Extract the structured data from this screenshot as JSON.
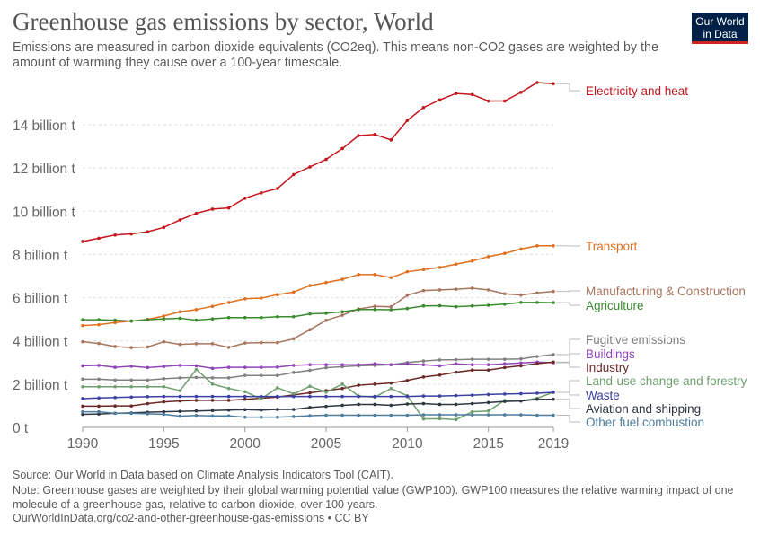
{
  "header": {
    "title": "Greenhouse gas emissions by sector, World",
    "subtitle": "Emissions are measured in carbon dioxide equivalents (CO2eq). This means non-CO2 gases are weighted by the amount of warming they cause over a 100-year timescale.",
    "logo": "Our World in Data"
  },
  "footer": {
    "source": "Source: Our World in Data based on Climate Analysis Indicators Tool (CAIT).",
    "note": "Note: Greenhouse gases are weighted by their global warming potential value (GWP100). GWP100 measures the relative warming impact of one molecule of a greenhouse gas, relative to carbon dioxide, over 100 years.",
    "url": "OurWorldInData.org/co2-and-other-greenhouse-gas-emissions • CC BY"
  },
  "chart_data": {
    "type": "line",
    "title": "Greenhouse gas emissions by sector, World",
    "xlabel": "",
    "ylabel": "",
    "xlim": [
      1990,
      2019
    ],
    "ylim": [
      0,
      16
    ],
    "x_ticks": [
      1990,
      1995,
      2000,
      2005,
      2010,
      2015,
      2019
    ],
    "y_ticks": [
      {
        "v": 0,
        "label": "0 t"
      },
      {
        "v": 2,
        "label": "2 billion t"
      },
      {
        "v": 4,
        "label": "4 billion t"
      },
      {
        "v": 6,
        "label": "6 billion t"
      },
      {
        "v": 8,
        "label": "8 billion t"
      },
      {
        "v": 10,
        "label": "10 billion t"
      },
      {
        "v": 12,
        "label": "12 billion t"
      },
      {
        "v": 14,
        "label": "14 billion t"
      }
    ],
    "grid": "horizontal dashed",
    "legend": "right, labels at line ends",
    "unit": "billion t",
    "x": [
      1990,
      1991,
      1992,
      1993,
      1994,
      1995,
      1996,
      1997,
      1998,
      1999,
      2000,
      2001,
      2002,
      2003,
      2004,
      2005,
      2006,
      2007,
      2008,
      2009,
      2010,
      2011,
      2012,
      2013,
      2014,
      2015,
      2016,
      2017,
      2018,
      2019
    ],
    "series": [
      {
        "name": "Electricity and heat",
        "color": "#c4161c",
        "values": [
          8.6,
          8.75,
          8.9,
          8.95,
          9.05,
          9.25,
          9.6,
          9.9,
          10.1,
          10.15,
          10.6,
          10.85,
          11.05,
          11.7,
          12.05,
          12.4,
          12.9,
          13.5,
          13.55,
          13.3,
          14.2,
          14.8,
          15.15,
          15.45,
          15.4,
          15.1,
          15.1,
          15.5,
          15.95,
          15.9
        ]
      },
      {
        "name": "Transport",
        "color": "#e0701e",
        "values": [
          4.71,
          4.75,
          4.85,
          4.92,
          5.0,
          5.15,
          5.35,
          5.45,
          5.6,
          5.78,
          5.95,
          5.98,
          6.14,
          6.26,
          6.56,
          6.7,
          6.85,
          7.07,
          7.07,
          6.93,
          7.2,
          7.3,
          7.4,
          7.55,
          7.7,
          7.9,
          8.05,
          8.25,
          8.4,
          8.4
        ]
      },
      {
        "name": "Manufacturing & Construction",
        "color": "#a8765f",
        "values": [
          3.96,
          3.88,
          3.74,
          3.69,
          3.72,
          3.96,
          3.84,
          3.87,
          3.87,
          3.7,
          3.9,
          3.92,
          3.92,
          4.1,
          4.52,
          4.95,
          5.19,
          5.48,
          5.6,
          5.58,
          6.11,
          6.33,
          6.36,
          6.39,
          6.44,
          6.36,
          6.18,
          6.12,
          6.22,
          6.29
        ]
      },
      {
        "name": "Agriculture",
        "color": "#3a8a30",
        "values": [
          4.98,
          4.98,
          4.96,
          4.92,
          4.98,
          5.02,
          5.05,
          4.96,
          5.02,
          5.08,
          5.08,
          5.08,
          5.12,
          5.12,
          5.25,
          5.28,
          5.35,
          5.45,
          5.45,
          5.44,
          5.5,
          5.62,
          5.63,
          5.58,
          5.62,
          5.65,
          5.7,
          5.78,
          5.78,
          5.77
        ]
      },
      {
        "name": "Fugitive emissions",
        "color": "#808080",
        "values": [
          2.23,
          2.23,
          2.19,
          2.19,
          2.19,
          2.25,
          2.29,
          2.31,
          2.29,
          2.29,
          2.4,
          2.4,
          2.4,
          2.54,
          2.64,
          2.76,
          2.81,
          2.85,
          2.87,
          2.9,
          3.0,
          3.07,
          3.12,
          3.13,
          3.15,
          3.15,
          3.15,
          3.17,
          3.28,
          3.37
        ]
      },
      {
        "name": "Buildings",
        "color": "#9046b8",
        "values": [
          2.85,
          2.87,
          2.78,
          2.83,
          2.77,
          2.82,
          2.87,
          2.85,
          2.73,
          2.78,
          2.78,
          2.78,
          2.79,
          2.87,
          2.9,
          2.9,
          2.9,
          2.9,
          2.94,
          2.9,
          2.94,
          2.9,
          2.85,
          2.94,
          2.9,
          2.9,
          2.94,
          2.98,
          3.02,
          2.99
        ]
      },
      {
        "name": "Industry",
        "color": "#6b2a28",
        "values": [
          0.98,
          0.98,
          0.99,
          0.99,
          1.1,
          1.18,
          1.22,
          1.25,
          1.25,
          1.25,
          1.3,
          1.35,
          1.4,
          1.5,
          1.6,
          1.7,
          1.8,
          1.95,
          2.0,
          2.05,
          2.17,
          2.33,
          2.42,
          2.55,
          2.65,
          2.65,
          2.77,
          2.85,
          2.95,
          3.02
        ]
      },
      {
        "name": "Land-use change and forestry",
        "color": "#6f9f6e",
        "values": [
          1.88,
          1.88,
          1.88,
          1.88,
          1.88,
          1.88,
          1.7,
          2.68,
          2.0,
          1.8,
          1.65,
          1.32,
          1.83,
          1.55,
          1.9,
          1.63,
          2.0,
          1.45,
          1.4,
          1.8,
          1.46,
          0.39,
          0.4,
          0.36,
          0.72,
          0.76,
          1.25,
          1.22,
          1.35,
          1.62
        ]
      },
      {
        "name": "Waste",
        "color": "#3b40a2",
        "values": [
          1.33,
          1.36,
          1.38,
          1.4,
          1.42,
          1.43,
          1.43,
          1.43,
          1.43,
          1.43,
          1.43,
          1.43,
          1.43,
          1.43,
          1.43,
          1.43,
          1.43,
          1.43,
          1.43,
          1.43,
          1.43,
          1.45,
          1.45,
          1.47,
          1.49,
          1.52,
          1.54,
          1.56,
          1.58,
          1.62
        ]
      },
      {
        "name": "Aviation and shipping",
        "color": "#2e3644",
        "values": [
          0.6,
          0.62,
          0.65,
          0.67,
          0.7,
          0.72,
          0.74,
          0.76,
          0.78,
          0.8,
          0.82,
          0.8,
          0.83,
          0.83,
          0.92,
          0.97,
          1.02,
          1.06,
          1.06,
          1.02,
          1.08,
          1.1,
          1.06,
          1.06,
          1.1,
          1.15,
          1.2,
          1.22,
          1.3,
          1.3
        ]
      },
      {
        "name": "Other fuel combustion",
        "color": "#4e7c9c",
        "values": [
          0.72,
          0.72,
          0.65,
          0.65,
          0.63,
          0.6,
          0.52,
          0.55,
          0.53,
          0.53,
          0.47,
          0.47,
          0.47,
          0.5,
          0.54,
          0.56,
          0.56,
          0.56,
          0.56,
          0.56,
          0.56,
          0.58,
          0.58,
          0.58,
          0.58,
          0.58,
          0.58,
          0.58,
          0.56,
          0.56
        ]
      }
    ]
  }
}
